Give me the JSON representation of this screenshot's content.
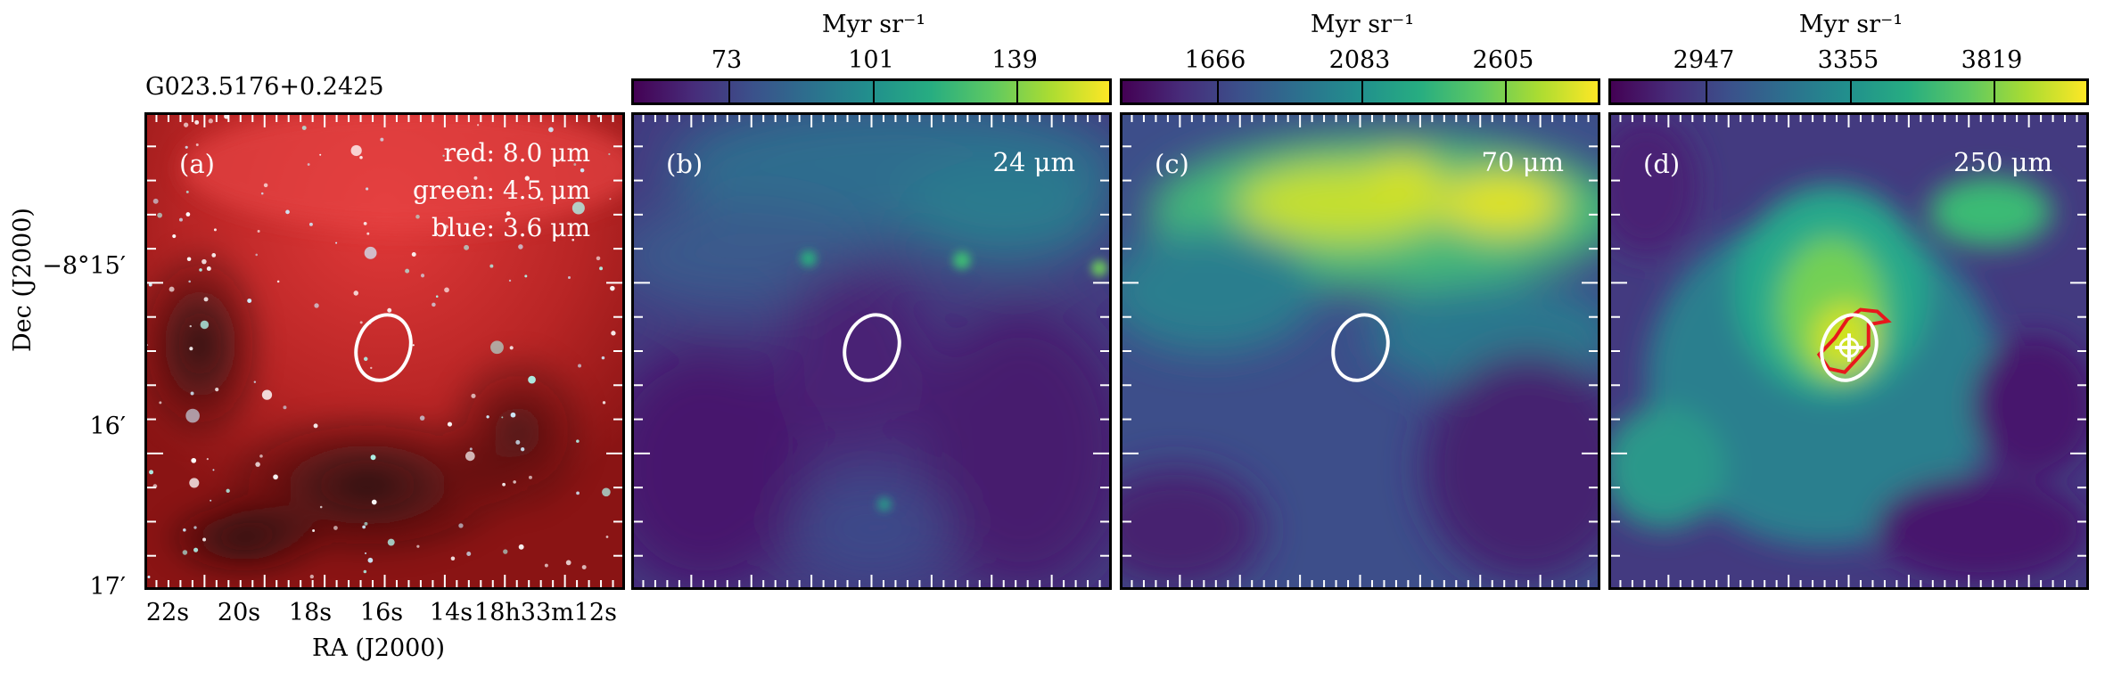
{
  "figure": {
    "target_name": "G023.5176+0.2425",
    "ra_label": "RA (J2000)",
    "dec_label": "Dec (J2000)",
    "ra_ticks": [
      "22s",
      "20s",
      "18s",
      "16s",
      "14s",
      "18h33m12s"
    ],
    "dec_ticks": [
      "−8°15′",
      "16′",
      "17′"
    ]
  },
  "panels": [
    {
      "id": "a",
      "label": "(a)",
      "legend_red": "red: 8.0 μm",
      "legend_green": "green: 4.5 μm",
      "legend_blue": "blue: 3.6 μm",
      "colormap": "rgb"
    },
    {
      "id": "b",
      "label": "(b)",
      "band": "24 μm",
      "colorbar_unit": "Myr sr⁻¹",
      "colorbar_ticks": [
        "73",
        "101",
        "139"
      ],
      "colormap": "viridis"
    },
    {
      "id": "c",
      "label": "(c)",
      "band": "70 μm",
      "colorbar_unit": "Myr sr⁻¹",
      "colorbar_ticks": [
        "1666",
        "2083",
        "2605"
      ],
      "colormap": "viridis"
    },
    {
      "id": "d",
      "label": "(d)",
      "band": "250 μm",
      "colorbar_unit": "Myr sr⁻¹",
      "colorbar_ticks": [
        "2947",
        "3355",
        "3819"
      ],
      "colormap": "viridis"
    }
  ],
  "colors": {
    "ellipse": "#ffffff",
    "contour": "#e8181c",
    "marker": "#ffffff"
  }
}
